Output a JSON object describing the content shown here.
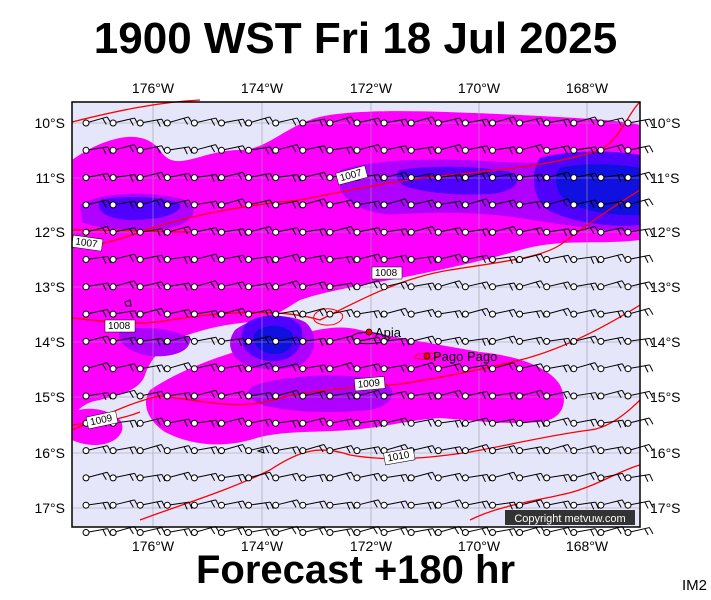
{
  "header": {
    "title": "1900 WST Fri 18 Jul 2025"
  },
  "footer": {
    "forecast_label": "Forecast +180 hr",
    "image_code": "IM2"
  },
  "map": {
    "longitude_labels": [
      "176°W",
      "174°W",
      "172°W",
      "170°W",
      "168°W"
    ],
    "latitude_labels": [
      "10°S",
      "11°S",
      "12°S",
      "13°S",
      "14°S",
      "15°S",
      "16°S",
      "17°S"
    ],
    "places": [
      {
        "name": "Apia"
      },
      {
        "name": "Pago Pago"
      }
    ],
    "isobars": [
      "1007",
      "1007",
      "1008",
      "1008",
      "1009",
      "1009",
      "1010"
    ],
    "copyright": "Copyright metvuw.com",
    "colors": {
      "background": "#e6e6fb",
      "rain_light": "#ff00ff",
      "rain_medium": "#b000ff",
      "rain_heavy": "#5000ff",
      "rain_peak": "#1010e0",
      "isobar": "#ff0000"
    }
  }
}
